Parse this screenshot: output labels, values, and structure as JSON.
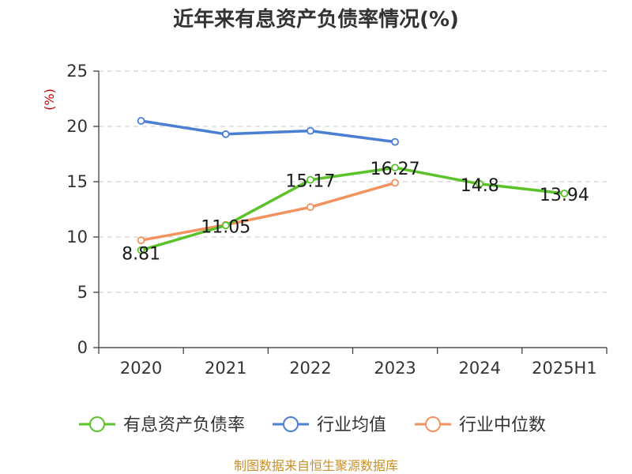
{
  "chart_data": {
    "type": "line",
    "title": "近年来有息资产负债率情况(%)",
    "unit_label": "(%)",
    "categories": [
      "2020",
      "2021",
      "2022",
      "2023",
      "2024",
      "2025H1"
    ],
    "yticks": [
      "0",
      "5",
      "10",
      "15",
      "20",
      "25"
    ],
    "ylim": [
      0,
      25
    ],
    "grid": true,
    "legend_position": "bottom",
    "series": [
      {
        "name": "有息资产负债率",
        "color": "#5cc22a",
        "values": [
          8.81,
          11.05,
          15.17,
          16.27,
          14.8,
          13.94
        ],
        "labels": [
          "8.81",
          "11.05",
          "15.17",
          "16.27",
          "14.8",
          "13.94"
        ]
      },
      {
        "name": "行业均值",
        "color": "#4a7fd4",
        "values": [
          20.5,
          19.3,
          19.6,
          18.6,
          null,
          null
        ]
      },
      {
        "name": "行业中位数",
        "color": "#f2925e",
        "values": [
          9.7,
          11.1,
          12.7,
          14.9,
          null,
          null
        ]
      }
    ]
  },
  "source": "制图数据来自恒生聚源数据库"
}
